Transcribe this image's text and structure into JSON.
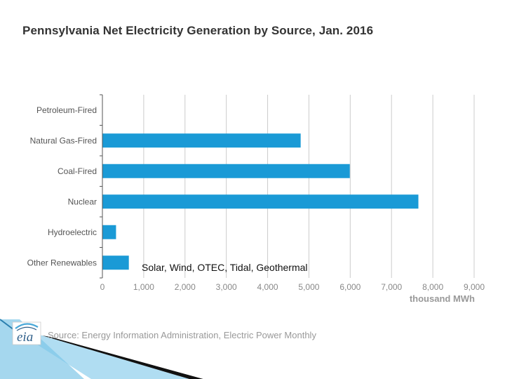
{
  "chart_data": {
    "type": "bar",
    "orientation": "horizontal",
    "title": "Pennsylvania Net Electricity Generation by Source, Jan. 2016",
    "xlabel": "thousand MWh",
    "ylabel": "",
    "categories": [
      "Petroleum-Fired",
      "Natural Gas-Fired",
      "Coal-Fired",
      "Nuclear",
      "Hydroelectric",
      "Other Renewables"
    ],
    "values": [
      0,
      4800,
      5990,
      7650,
      330,
      640
    ],
    "xlim": [
      0,
      9000
    ],
    "xticks": [
      0,
      1000,
      2000,
      3000,
      4000,
      5000,
      6000,
      7000,
      8000,
      9000
    ],
    "xtick_labels": [
      "0",
      "1,000",
      "2,000",
      "3,000",
      "4,000",
      "5,000",
      "6,000",
      "7,000",
      "8,000",
      "9,000"
    ],
    "grid": true,
    "bar_color": "#1a9ad6",
    "annotation": "Solar, Wind, OTEC, Tidal, Geothermal"
  },
  "source": "Source: Energy Information Administration, Electric Power Monthly",
  "logo": {
    "text": "eia",
    "icon": "eia-logo-icon"
  },
  "colors": {
    "accent": "#1a9ad6",
    "decor_band": "#5bb6e0",
    "grid": "#cccccc"
  }
}
